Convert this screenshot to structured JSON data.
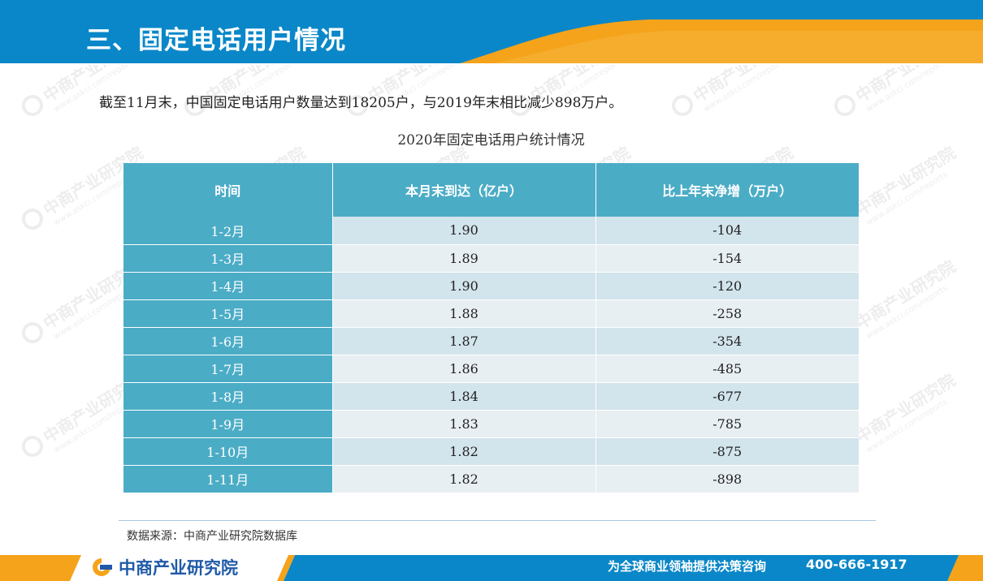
{
  "header": {
    "title": "三、固定电话用户情况"
  },
  "intro": "截至11月末，中国固定电话用户数量达到18205户，与2019年末相比减少898万户。",
  "table": {
    "title": "2020年固定电话用户统计情况",
    "columns": [
      "时间",
      "本月末到达（亿户）",
      "比上年末净增（万户）"
    ],
    "rows": [
      {
        "period": "1-2月",
        "users": "1.90",
        "net": "-104"
      },
      {
        "period": "1-3月",
        "users": "1.89",
        "net": "-154"
      },
      {
        "period": "1-4月",
        "users": "1.90",
        "net": "-120"
      },
      {
        "period": "1-5月",
        "users": "1.88",
        "net": "-258"
      },
      {
        "period": "1-6月",
        "users": "1.87",
        "net": "-354"
      },
      {
        "period": "1-7月",
        "users": "1.86",
        "net": "-485"
      },
      {
        "period": "1-8月",
        "users": "1.84",
        "net": "-677"
      },
      {
        "period": "1-9月",
        "users": "1.83",
        "net": "-785"
      },
      {
        "period": "1-10月",
        "users": "1.82",
        "net": "-875"
      },
      {
        "period": "1-11月",
        "users": "1.82",
        "net": "-898"
      }
    ]
  },
  "source": "数据来源：中商产业研究院数据库",
  "footer": {
    "brand": "中商产业研究院",
    "slogan": "为全球商业领袖提供决策咨询",
    "phone": "400-666-1917"
  },
  "watermark": {
    "text": "中商产业研究院",
    "url": "www.askci.com/reports"
  },
  "colors": {
    "header_blue": "#0a87c8",
    "accent_orange": "#f5a31a",
    "table_header": "#4bacc6",
    "row_odd": "#d2e4ec",
    "row_even": "#e8eff3",
    "brand_blue": "#1f5aa8"
  }
}
